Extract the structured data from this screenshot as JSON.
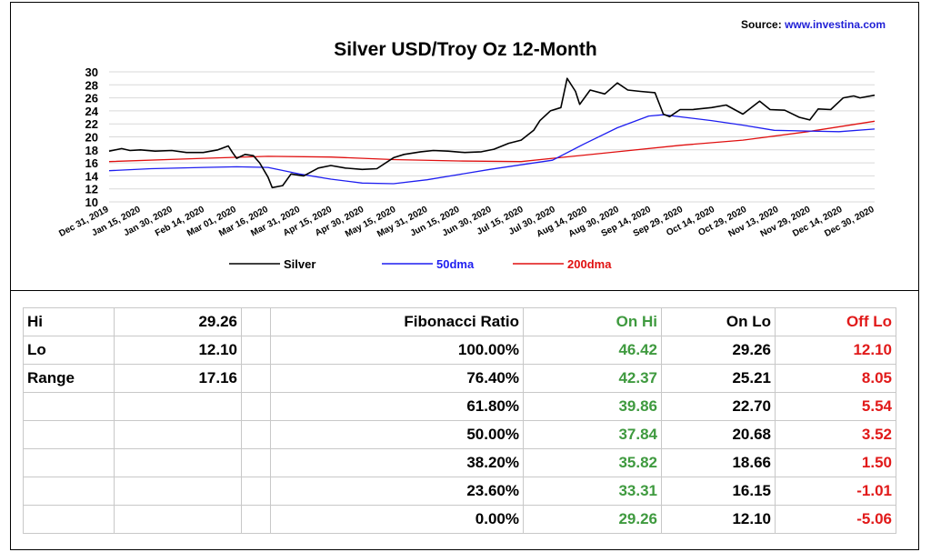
{
  "source": {
    "prefix": "Source:",
    "link": "www.investina.com"
  },
  "chart_data": {
    "type": "line",
    "title": "Silver USD/Troy Oz 12-Month",
    "xlabel": "",
    "ylabel": "",
    "ylim": [
      10,
      30
    ],
    "yticks": [
      10,
      12,
      14,
      16,
      18,
      20,
      22,
      24,
      26,
      28,
      30
    ],
    "x_range": [
      "2019-12-31",
      "2020-12-31"
    ],
    "xtick_labels": [
      "Dec 31, 2019",
      "Jan 15, 2020",
      "Jan 30, 2020",
      "Feb 14, 2020",
      "Mar 01, 2020",
      "Mar 16, 2020",
      "Mar 31, 2020",
      "Apr 15, 2020",
      "Apr 30, 2020",
      "May 15, 2020",
      "May 31, 2020",
      "Jun 15, 2020",
      "Jun 30, 2020",
      "Jul 15, 2020",
      "Jul 30, 2020",
      "Aug 14, 2020",
      "Aug 30, 2020",
      "Sep 14, 2020",
      "Sep 29, 2020",
      "Oct 14, 2020",
      "Oct 29, 2020",
      "Nov 13, 2020",
      "Nov 29, 2020",
      "Dec 14, 2020",
      "Dec 30, 2020"
    ],
    "grid": "horizontal",
    "legend": "bottom",
    "series": [
      {
        "name": "Silver",
        "color": "#000000",
        "points": [
          [
            "2019-12-31",
            17.8
          ],
          [
            "2020-01-06",
            18.2
          ],
          [
            "2020-01-10",
            17.9
          ],
          [
            "2020-01-15",
            18.0
          ],
          [
            "2020-01-22",
            17.8
          ],
          [
            "2020-01-30",
            17.9
          ],
          [
            "2020-02-06",
            17.6
          ],
          [
            "2020-02-14",
            17.6
          ],
          [
            "2020-02-21",
            18.0
          ],
          [
            "2020-02-26",
            18.6
          ],
          [
            "2020-02-28",
            17.6
          ],
          [
            "2020-03-01",
            16.7
          ],
          [
            "2020-03-05",
            17.3
          ],
          [
            "2020-03-09",
            17.1
          ],
          [
            "2020-03-12",
            16.0
          ],
          [
            "2020-03-16",
            13.8
          ],
          [
            "2020-03-18",
            12.2
          ],
          [
            "2020-03-23",
            12.5
          ],
          [
            "2020-03-27",
            14.3
          ],
          [
            "2020-04-02",
            14.0
          ],
          [
            "2020-04-09",
            15.2
          ],
          [
            "2020-04-15",
            15.6
          ],
          [
            "2020-04-22",
            15.2
          ],
          [
            "2020-04-30",
            15.0
          ],
          [
            "2020-05-07",
            15.1
          ],
          [
            "2020-05-15",
            16.8
          ],
          [
            "2020-05-20",
            17.3
          ],
          [
            "2020-05-28",
            17.7
          ],
          [
            "2020-06-03",
            17.9
          ],
          [
            "2020-06-10",
            17.8
          ],
          [
            "2020-06-18",
            17.6
          ],
          [
            "2020-06-26",
            17.7
          ],
          [
            "2020-07-02",
            18.1
          ],
          [
            "2020-07-09",
            19.0
          ],
          [
            "2020-07-15",
            19.5
          ],
          [
            "2020-07-21",
            21.0
          ],
          [
            "2020-07-24",
            22.5
          ],
          [
            "2020-07-29",
            24.0
          ],
          [
            "2020-08-03",
            24.5
          ],
          [
            "2020-08-06",
            29.0
          ],
          [
            "2020-08-10",
            27.0
          ],
          [
            "2020-08-12",
            25.0
          ],
          [
            "2020-08-17",
            27.2
          ],
          [
            "2020-08-24",
            26.6
          ],
          [
            "2020-08-30",
            28.3
          ],
          [
            "2020-09-04",
            27.2
          ],
          [
            "2020-09-10",
            27.0
          ],
          [
            "2020-09-17",
            26.8
          ],
          [
            "2020-09-21",
            23.5
          ],
          [
            "2020-09-24",
            23.1
          ],
          [
            "2020-09-29",
            24.2
          ],
          [
            "2020-10-05",
            24.2
          ],
          [
            "2020-10-14",
            24.5
          ],
          [
            "2020-10-21",
            24.9
          ],
          [
            "2020-10-29",
            23.5
          ],
          [
            "2020-11-06",
            25.5
          ],
          [
            "2020-11-11",
            24.2
          ],
          [
            "2020-11-18",
            24.1
          ],
          [
            "2020-11-25",
            23.0
          ],
          [
            "2020-11-30",
            22.6
          ],
          [
            "2020-12-04",
            24.3
          ],
          [
            "2020-12-10",
            24.2
          ],
          [
            "2020-12-16",
            26.0
          ],
          [
            "2020-12-21",
            26.3
          ],
          [
            "2020-12-24",
            26.0
          ],
          [
            "2020-12-31",
            26.4
          ]
        ]
      },
      {
        "name": "50dma",
        "color": "#1e1ef0",
        "points": [
          [
            "2019-12-31",
            14.8
          ],
          [
            "2020-01-20",
            15.1
          ],
          [
            "2020-02-14",
            15.3
          ],
          [
            "2020-03-01",
            15.4
          ],
          [
            "2020-03-16",
            15.3
          ],
          [
            "2020-03-31",
            14.3
          ],
          [
            "2020-04-15",
            13.5
          ],
          [
            "2020-04-30",
            12.9
          ],
          [
            "2020-05-15",
            12.8
          ],
          [
            "2020-05-31",
            13.4
          ],
          [
            "2020-06-15",
            14.2
          ],
          [
            "2020-06-30",
            15.0
          ],
          [
            "2020-07-15",
            15.7
          ],
          [
            "2020-07-30",
            16.4
          ],
          [
            "2020-08-14",
            18.9
          ],
          [
            "2020-08-30",
            21.4
          ],
          [
            "2020-09-14",
            23.2
          ],
          [
            "2020-09-21",
            23.4
          ],
          [
            "2020-10-14",
            22.5
          ],
          [
            "2020-10-29",
            21.8
          ],
          [
            "2020-11-13",
            21.0
          ],
          [
            "2020-11-29",
            20.9
          ],
          [
            "2020-12-14",
            20.8
          ],
          [
            "2020-12-31",
            21.2
          ]
        ]
      },
      {
        "name": "200dma",
        "color": "#e01010",
        "points": [
          [
            "2019-12-31",
            16.2
          ],
          [
            "2020-02-14",
            16.7
          ],
          [
            "2020-03-16",
            17.0
          ],
          [
            "2020-04-15",
            16.9
          ],
          [
            "2020-05-15",
            16.5
          ],
          [
            "2020-06-15",
            16.3
          ],
          [
            "2020-07-15",
            16.2
          ],
          [
            "2020-07-30",
            16.7
          ],
          [
            "2020-08-30",
            17.7
          ],
          [
            "2020-09-29",
            18.7
          ],
          [
            "2020-10-29",
            19.5
          ],
          [
            "2020-11-29",
            20.8
          ],
          [
            "2020-12-31",
            22.4
          ]
        ]
      }
    ]
  },
  "fib_table": {
    "rows": [
      [
        "Hi",
        "29.26",
        "",
        "Fibonacci  Ratio",
        "On Hi",
        "On Lo",
        "Off Lo"
      ],
      [
        "Lo",
        "12.10",
        "",
        "100.00%",
        "46.42",
        "29.26",
        "12.10"
      ],
      [
        "Range",
        "17.16",
        "",
        "76.40%",
        "42.37",
        "25.21",
        "8.05"
      ],
      [
        "",
        "",
        "",
        "61.80%",
        "39.86",
        "22.70",
        "5.54"
      ],
      [
        "",
        "",
        "",
        "50.00%",
        "37.84",
        "20.68",
        "3.52"
      ],
      [
        "",
        "",
        "",
        "38.20%",
        "35.82",
        "18.66",
        "1.50"
      ],
      [
        "",
        "",
        "",
        "23.60%",
        "33.31",
        "16.15",
        "-1.01"
      ],
      [
        "",
        "",
        "",
        "0.00%",
        "29.26",
        "12.10",
        "-5.06"
      ]
    ]
  }
}
